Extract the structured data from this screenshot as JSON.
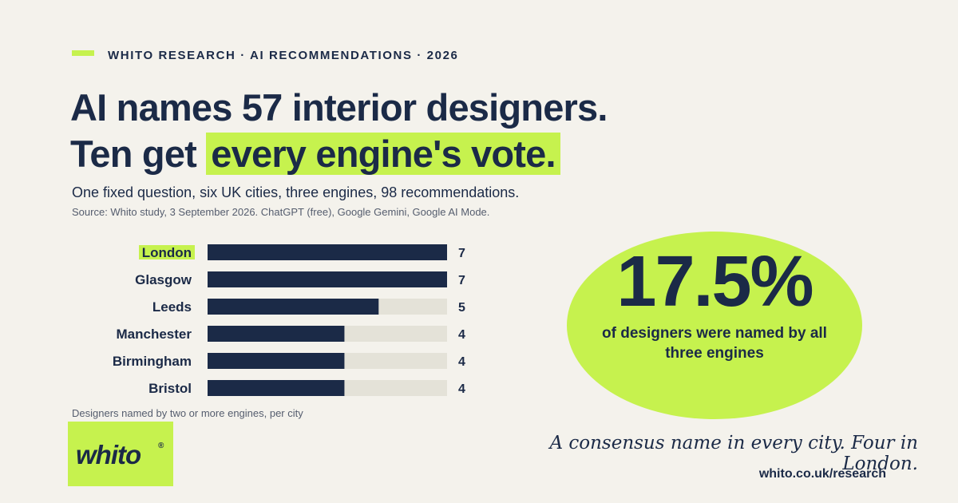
{
  "header": {
    "eyebrow": "WHITO RESEARCH · AI RECOMMENDATIONS · 2026",
    "headline_line1": "AI names 57 interior designers.",
    "headline_line2_prefix": "Ten get",
    "headline_line2_highlight": "every engine's vote.",
    "subtitle": "One fixed question, six UK cities, three engines, 98 recommendations.",
    "source": "Source: Whito study, 3 September 2026. ChatGPT (free), Google Gemini, Google AI Mode."
  },
  "chart_data": {
    "type": "bar",
    "orientation": "horizontal",
    "categories": [
      "London",
      "Glasgow",
      "Leeds",
      "Manchester",
      "Birmingham",
      "Bristol"
    ],
    "values": [
      7,
      7,
      5,
      4,
      4,
      4
    ],
    "xlim": [
      0,
      7
    ],
    "highlighted_category": "London",
    "caption": "Designers named by two or more engines, per city",
    "grid": false,
    "legend": "none"
  },
  "stat": {
    "value": "17.5%",
    "caption": "of designers were named by all three engines"
  },
  "brand": {
    "logo_text": "whito",
    "logo_mark": "®",
    "tagline": "A consensus name in every city. Four in London.",
    "url": "whito.co.uk/research"
  },
  "colors": {
    "accent": "#c6f24e",
    "navy": "#1b2a47",
    "background": "#f4f2ec",
    "track": "#e4e2d8"
  }
}
